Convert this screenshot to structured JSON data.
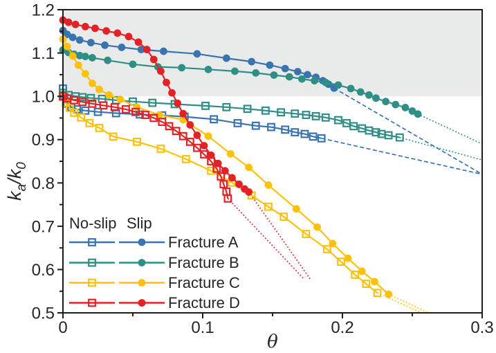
{
  "chart_data": {
    "type": "line",
    "title": "",
    "xlabel": "θ",
    "ylabel": "ka/k0",
    "ylabel_rich": [
      {
        "t": "k",
        "style": "italic"
      },
      {
        "t": "a",
        "style": "sub"
      },
      {
        "t": "/k",
        "style": "italic"
      },
      {
        "t": "0",
        "style": "sub"
      }
    ],
    "xlim": [
      0,
      0.3
    ],
    "ylim": [
      0.5,
      1.2
    ],
    "grid": false,
    "x_major_ticks": [
      0,
      0.1,
      0.2,
      0.3
    ],
    "x_tick_labels": [
      "0",
      "0.1",
      "0.2",
      "0.3"
    ],
    "x_minor_ticks": [
      0.05,
      0.15,
      0.25
    ],
    "y_major_ticks": [
      0.5,
      0.6,
      0.7,
      0.8,
      0.9,
      1.0,
      1.1,
      1.2
    ],
    "y_tick_labels": [
      "0.5",
      "0.6",
      "0.7",
      "0.8",
      "0.9",
      "1.0",
      "1.1",
      "1.2"
    ],
    "y_minor_ticks": [
      0.55,
      0.65,
      0.75,
      0.85,
      0.95,
      1.05,
      1.15
    ],
    "shaded_band": {
      "y_from": 1.0,
      "y_to": 1.2,
      "color": "#e9eaea"
    },
    "frame_color": "#1c1c1c",
    "text_color": "#262626",
    "legend": {
      "position": "bottom-left",
      "column_headers": [
        "No-slip",
        "Slip"
      ],
      "entries": [
        {
          "label": "Fracture A",
          "color": "#3a74b0"
        },
        {
          "label": "Fracture B",
          "color": "#2f8e86"
        },
        {
          "label": "Fracture C",
          "color": "#fcc10a"
        },
        {
          "label": "Fracture D",
          "color": "#e32226"
        }
      ]
    },
    "series": [
      {
        "id": "fracture-a-noslip",
        "fracture": "Fracture A",
        "condition": "No-slip",
        "marker": "open-square",
        "color": "#3a74b0",
        "points": [
          [
            0,
            1.018
          ],
          [
            0.001,
            0.998
          ],
          [
            0.003,
            0.983
          ],
          [
            0.006,
            0.975
          ],
          [
            0.01,
            0.97
          ],
          [
            0.016,
            0.967
          ],
          [
            0.025,
            0.964
          ],
          [
            0.038,
            0.961
          ],
          [
            0.055,
            0.958
          ],
          [
            0.071,
            0.956
          ],
          [
            0.087,
            0.953
          ],
          [
            0.108,
            0.947
          ],
          [
            0.125,
            0.938
          ],
          [
            0.138,
            0.932
          ],
          [
            0.149,
            0.929
          ],
          [
            0.159,
            0.923
          ],
          [
            0.166,
            0.917
          ],
          [
            0.173,
            0.913
          ],
          [
            0.179,
            0.907
          ],
          [
            0.185,
            0.903
          ]
        ],
        "extension": {
          "style": "dashed",
          "points": [
            [
              0.185,
              0.903
            ],
            [
              0.3,
              0.82
            ]
          ]
        }
      },
      {
        "id": "fracture-a-slip",
        "fracture": "Fracture A",
        "condition": "Slip",
        "marker": "circle",
        "color": "#3a74b0",
        "points": [
          [
            0,
            1.152
          ],
          [
            0.003,
            1.143
          ],
          [
            0.007,
            1.136
          ],
          [
            0.012,
            1.13
          ],
          [
            0.02,
            1.124
          ],
          [
            0.03,
            1.118
          ],
          [
            0.042,
            1.113
          ],
          [
            0.056,
            1.108
          ],
          [
            0.072,
            1.104
          ],
          [
            0.096,
            1.098
          ],
          [
            0.117,
            1.088
          ],
          [
            0.135,
            1.08
          ],
          [
            0.148,
            1.072
          ],
          [
            0.159,
            1.064
          ],
          [
            0.168,
            1.057
          ],
          [
            0.175,
            1.05
          ],
          [
            0.181,
            1.044
          ],
          [
            0.186,
            1.036
          ],
          [
            0.19,
            1.028
          ],
          [
            0.194,
            1.019
          ]
        ],
        "extension": {
          "style": "dashed",
          "points": [
            [
              0.194,
              1.019
            ],
            [
              0.3,
              0.82
            ]
          ]
        }
      },
      {
        "id": "fracture-b-noslip",
        "fracture": "Fracture B",
        "condition": "No-slip",
        "marker": "open-square",
        "color": "#2f8e86",
        "points": [
          [
            0,
            1.008
          ],
          [
            0.004,
            1.003
          ],
          [
            0.009,
            1.0
          ],
          [
            0.014,
            0.998
          ],
          [
            0.02,
            0.996
          ],
          [
            0.028,
            0.994
          ],
          [
            0.038,
            0.991
          ],
          [
            0.05,
            0.988
          ],
          [
            0.064,
            0.985
          ],
          [
            0.08,
            0.982
          ],
          [
            0.102,
            0.978
          ],
          [
            0.117,
            0.975
          ],
          [
            0.132,
            0.971
          ],
          [
            0.145,
            0.967
          ],
          [
            0.156,
            0.963
          ],
          [
            0.166,
            0.96
          ],
          [
            0.174,
            0.957
          ],
          [
            0.181,
            0.954
          ],
          [
            0.188,
            0.951
          ],
          [
            0.197,
            0.945
          ],
          [
            0.203,
            0.938
          ],
          [
            0.208,
            0.931
          ],
          [
            0.214,
            0.926
          ],
          [
            0.219,
            0.921
          ],
          [
            0.224,
            0.917
          ],
          [
            0.228,
            0.913
          ],
          [
            0.233,
            0.91
          ],
          [
            0.241,
            0.905
          ]
        ],
        "extension": {
          "style": "dotted",
          "points": [
            [
              0.241,
              0.905
            ],
            [
              0.3,
              0.853
            ]
          ]
        }
      },
      {
        "id": "fracture-b-slip",
        "fracture": "Fracture B",
        "condition": "Slip",
        "marker": "circle",
        "color": "#2f8e86",
        "points": [
          [
            0,
            1.107
          ],
          [
            0.004,
            1.101
          ],
          [
            0.008,
            1.097
          ],
          [
            0.012,
            1.094
          ],
          [
            0.016,
            1.092
          ],
          [
            0.021,
            1.089
          ],
          [
            0.032,
            1.083
          ],
          [
            0.05,
            1.074
          ],
          [
            0.068,
            1.068
          ],
          [
            0.085,
            1.066
          ],
          [
            0.104,
            1.062
          ],
          [
            0.123,
            1.058
          ],
          [
            0.138,
            1.054
          ],
          [
            0.151,
            1.049
          ],
          [
            0.162,
            1.045
          ],
          [
            0.171,
            1.04
          ],
          [
            0.18,
            1.036
          ],
          [
            0.188,
            1.032
          ],
          [
            0.197,
            1.026
          ],
          [
            0.206,
            1.018
          ],
          [
            0.213,
            1.01
          ],
          [
            0.219,
            1.003
          ],
          [
            0.224,
            0.996
          ],
          [
            0.231,
            0.988
          ],
          [
            0.238,
            0.981
          ],
          [
            0.245,
            0.974
          ],
          [
            0.25,
            0.966
          ],
          [
            0.254,
            0.959
          ]
        ],
        "extension": {
          "style": "dotted",
          "points": [
            [
              0.254,
              0.959
            ],
            [
              0.3,
              0.89
            ]
          ]
        }
      },
      {
        "id": "fracture-c-noslip",
        "fracture": "Fracture C",
        "condition": "No-slip",
        "marker": "open-square",
        "color": "#fcc10a",
        "points": [
          [
            0,
            0.998
          ],
          [
            0.002,
            0.985
          ],
          [
            0.005,
            0.973
          ],
          [
            0.008,
            0.962
          ],
          [
            0.013,
            0.951
          ],
          [
            0.019,
            0.938
          ],
          [
            0.026,
            0.927
          ],
          [
            0.036,
            0.907
          ],
          [
            0.053,
            0.895
          ],
          [
            0.07,
            0.879
          ],
          [
            0.088,
            0.855
          ],
          [
            0.106,
            0.828
          ],
          [
            0.121,
            0.801
          ],
          [
            0.135,
            0.771
          ],
          [
            0.147,
            0.745
          ],
          [
            0.158,
            0.722
          ],
          [
            0.174,
            0.682
          ],
          [
            0.189,
            0.647
          ],
          [
            0.199,
            0.618
          ],
          [
            0.209,
            0.588
          ],
          [
            0.217,
            0.567
          ],
          [
            0.225,
            0.546
          ]
        ],
        "extension": {
          "style": "dotted",
          "points": [
            [
              0.225,
              0.546
            ],
            [
              0.256,
              0.501
            ]
          ]
        }
      },
      {
        "id": "fracture-c-slip",
        "fracture": "Fracture C",
        "condition": "Slip",
        "marker": "circle",
        "color": "#fcc10a",
        "points": [
          [
            0,
            1.132
          ],
          [
            0.003,
            1.115
          ],
          [
            0.007,
            1.093
          ],
          [
            0.011,
            1.072
          ],
          [
            0.016,
            1.052
          ],
          [
            0.021,
            1.03
          ],
          [
            0.026,
            1.016
          ],
          [
            0.033,
            1.003
          ],
          [
            0.041,
            0.993
          ],
          [
            0.053,
            0.975
          ],
          [
            0.069,
            0.957
          ],
          [
            0.086,
            0.946
          ],
          [
            0.104,
            0.908
          ],
          [
            0.12,
            0.867
          ],
          [
            0.133,
            0.836
          ],
          [
            0.147,
            0.795
          ],
          [
            0.167,
            0.74
          ],
          [
            0.182,
            0.698
          ],
          [
            0.193,
            0.66
          ],
          [
            0.204,
            0.626
          ],
          [
            0.214,
            0.596
          ],
          [
            0.223,
            0.572
          ],
          [
            0.233,
            0.543
          ]
        ],
        "extension": {
          "style": "dotted",
          "points": [
            [
              0.233,
              0.543
            ],
            [
              0.261,
              0.501
            ]
          ]
        }
      },
      {
        "id": "fracture-d-noslip",
        "fracture": "Fracture D",
        "condition": "No-slip",
        "marker": "open-square",
        "color": "#e32226",
        "points": [
          [
            0,
            1.0
          ],
          [
            0.003,
            0.995
          ],
          [
            0.008,
            0.991
          ],
          [
            0.014,
            0.987
          ],
          [
            0.021,
            0.983
          ],
          [
            0.029,
            0.979
          ],
          [
            0.037,
            0.975
          ],
          [
            0.045,
            0.97
          ],
          [
            0.052,
            0.964
          ],
          [
            0.059,
            0.957
          ],
          [
            0.065,
            0.95
          ],
          [
            0.071,
            0.941
          ],
          [
            0.076,
            0.931
          ],
          [
            0.081,
            0.92
          ],
          [
            0.086,
            0.908
          ],
          [
            0.091,
            0.895
          ],
          [
            0.096,
            0.881
          ],
          [
            0.101,
            0.866
          ],
          [
            0.106,
            0.85
          ],
          [
            0.11,
            0.833
          ],
          [
            0.113,
            0.815
          ],
          [
            0.115,
            0.797
          ],
          [
            0.117,
            0.78
          ],
          [
            0.118,
            0.764
          ]
        ],
        "extension": {
          "style": "dotted",
          "points": [
            [
              0.118,
              0.764
            ],
            [
              0.172,
              0.58
            ]
          ]
        }
      },
      {
        "id": "fracture-d-slip",
        "fracture": "Fracture D",
        "condition": "Slip",
        "marker": "circle",
        "color": "#e32226",
        "points": [
          [
            0,
            1.176
          ],
          [
            0.004,
            1.171
          ],
          [
            0.009,
            1.166
          ],
          [
            0.016,
            1.161
          ],
          [
            0.023,
            1.157
          ],
          [
            0.031,
            1.151
          ],
          [
            0.039,
            1.146
          ],
          [
            0.047,
            1.138
          ],
          [
            0.054,
            1.125
          ],
          [
            0.06,
            1.108
          ],
          [
            0.065,
            1.085
          ],
          [
            0.07,
            1.058
          ],
          [
            0.074,
            1.032
          ],
          [
            0.078,
            1.008
          ],
          [
            0.082,
            0.984
          ],
          [
            0.086,
            0.96
          ],
          [
            0.091,
            0.934
          ],
          [
            0.096,
            0.91
          ],
          [
            0.101,
            0.886
          ],
          [
            0.106,
            0.864
          ],
          [
            0.111,
            0.845
          ],
          [
            0.116,
            0.828
          ],
          [
            0.121,
            0.812
          ],
          [
            0.126,
            0.797
          ],
          [
            0.13,
            0.786
          ],
          [
            0.133,
            0.779
          ]
        ],
        "extension": {
          "style": "dotted",
          "points": [
            [
              0.133,
              0.779
            ],
            [
              0.177,
              0.578
            ]
          ]
        }
      }
    ]
  }
}
